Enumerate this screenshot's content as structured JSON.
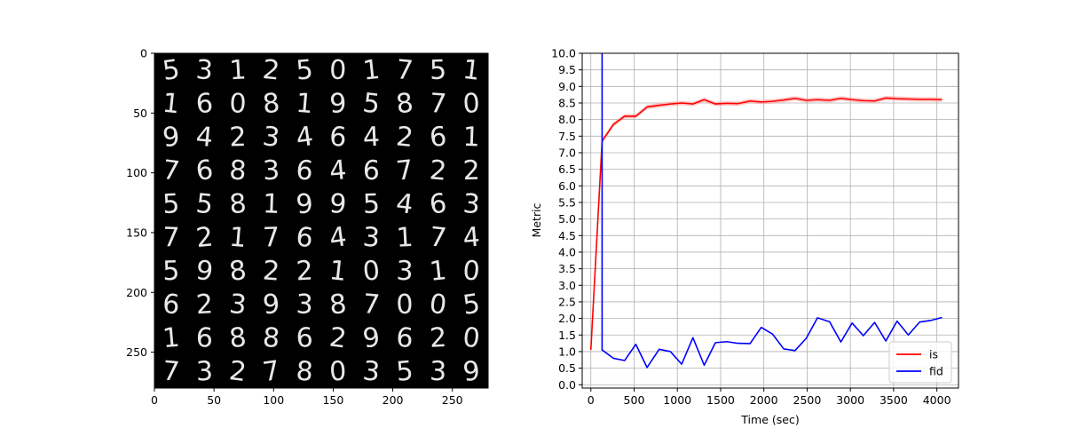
{
  "chart_data": [
    {
      "type": "image",
      "xlim": [
        0,
        280
      ],
      "ylim": [
        280,
        0
      ],
      "xticks": [
        0,
        50,
        100,
        150,
        200,
        250
      ],
      "yticks": [
        0,
        50,
        100,
        150,
        200,
        250
      ],
      "background": "#000000",
      "rows": [
        [
          "5",
          "3",
          "1",
          "2",
          "5",
          "0",
          "1",
          "7",
          "5",
          "1"
        ],
        [
          "1",
          "6",
          "0",
          "8",
          "1",
          "9",
          "5",
          "8",
          "7",
          "0"
        ],
        [
          "9",
          "4",
          "2",
          "3",
          "4",
          "6",
          "4",
          "2",
          "6",
          "1"
        ],
        [
          "7",
          "6",
          "8",
          "3",
          "6",
          "4",
          "6",
          "7",
          "2",
          "2"
        ],
        [
          "5",
          "5",
          "8",
          "1",
          "9",
          "9",
          "5",
          "4",
          "6",
          "3"
        ],
        [
          "7",
          "2",
          "1",
          "7",
          "6",
          "4",
          "3",
          "1",
          "7",
          "4"
        ],
        [
          "5",
          "9",
          "8",
          "2",
          "2",
          "1",
          "0",
          "3",
          "1",
          "0"
        ],
        [
          "6",
          "2",
          "3",
          "9",
          "3",
          "8",
          "7",
          "0",
          "0",
          "5"
        ],
        [
          "1",
          "6",
          "8",
          "8",
          "6",
          "2",
          "9",
          "6",
          "2",
          "0"
        ],
        [
          "7",
          "3",
          "2",
          "7",
          "8",
          "0",
          "3",
          "5",
          "3",
          "9"
        ]
      ]
    },
    {
      "type": "line",
      "xlabel": "Time (sec)",
      "ylabel": "Metric",
      "xlim": [
        -100,
        4250
      ],
      "ylim": [
        -0.1,
        10.0
      ],
      "xticks": [
        0,
        500,
        1000,
        1500,
        2000,
        2500,
        3000,
        3500,
        4000
      ],
      "yticks": [
        0.0,
        0.5,
        1.0,
        1.5,
        2.0,
        2.5,
        3.0,
        3.5,
        4.0,
        4.5,
        5.0,
        5.5,
        6.0,
        6.5,
        7.0,
        7.5,
        8.0,
        8.5,
        9.0,
        9.5,
        10.0
      ],
      "grid": true,
      "legend_position": "lower-right",
      "series": [
        {
          "name": "is",
          "color": "#ff0000",
          "band_color": "#ff9999",
          "x": [
            0,
            130,
            260,
            390,
            520,
            650,
            790,
            920,
            1050,
            1180,
            1310,
            1440,
            1570,
            1700,
            1840,
            1970,
            2100,
            2230,
            2360,
            2490,
            2620,
            2760,
            2890,
            3020,
            3150,
            3280,
            3410,
            3540,
            3670,
            3800,
            3930,
            4060
          ],
          "y": [
            1.05,
            7.35,
            7.85,
            8.1,
            8.1,
            8.38,
            8.43,
            8.47,
            8.5,
            8.47,
            8.6,
            8.47,
            8.49,
            8.48,
            8.56,
            8.53,
            8.55,
            8.59,
            8.64,
            8.58,
            8.6,
            8.58,
            8.64,
            8.6,
            8.57,
            8.56,
            8.65,
            8.63,
            8.62,
            8.61,
            8.61,
            8.6
          ]
        },
        {
          "name": "fid",
          "color": "#0000ff",
          "x": [
            0,
            130,
            130,
            260,
            390,
            520,
            650,
            790,
            920,
            1050,
            1180,
            1310,
            1440,
            1570,
            1700,
            1840,
            1970,
            2100,
            2230,
            2360,
            2490,
            2620,
            2760,
            2890,
            3020,
            3150,
            3280,
            3410,
            3540,
            3670,
            3800,
            3930,
            4060
          ],
          "y": [
            10.5,
            10.5,
            1.05,
            0.8,
            0.73,
            1.22,
            0.52,
            1.07,
            1.0,
            0.62,
            1.42,
            0.59,
            1.27,
            1.3,
            1.25,
            1.24,
            1.73,
            1.53,
            1.08,
            1.03,
            1.4,
            2.02,
            1.9,
            1.29,
            1.86,
            1.48,
            1.88,
            1.32,
            1.92,
            1.5,
            1.89,
            1.94,
            2.03
          ]
        }
      ]
    }
  ]
}
